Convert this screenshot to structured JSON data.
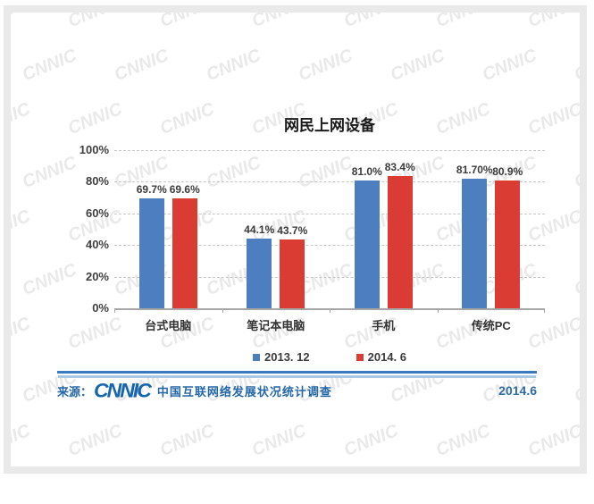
{
  "page": {
    "watermark_text": "CNNIC",
    "source_label": "来源：",
    "source_logo": "CNNIC",
    "source_text": "中国互联网络发展状况统计调查",
    "footer_date": "2014.6"
  },
  "colors": {
    "series_2013_blue": "#4d7ebf",
    "series_2014_red": "#da3b32",
    "divider_blue": "#3a79be",
    "footer_text_blue": "#2568a8",
    "frame_gray": "#e9e9e9",
    "gridline_gray": "#c6c6c6",
    "axis_gray": "#a6a6a6"
  },
  "chart_data": {
    "type": "bar",
    "title": "网民上网设备",
    "categories": [
      "台式电脑",
      "笔记本电脑",
      "手机",
      "传统PC"
    ],
    "series": [
      {
        "name": "2013. 12",
        "color": "#4d7ebf",
        "values": [
          69.7,
          44.1,
          81.0,
          81.7
        ],
        "labels": [
          "69.7%",
          "44.1%",
          "81.0%",
          "81.70%"
        ]
      },
      {
        "name": "2014. 6",
        "color": "#da3b32",
        "values": [
          69.6,
          43.7,
          83.4,
          80.9
        ],
        "labels": [
          "69.6%",
          "43.7%",
          "83.4%",
          "80.9%"
        ]
      }
    ],
    "xlabel": "",
    "ylabel": "",
    "y_axis": {
      "min": 0,
      "max": 100,
      "tick_step": 20,
      "ticks": [
        "100%",
        "80%",
        "60%",
        "40%",
        "20%",
        "0%"
      ]
    },
    "grid": "horizontal-dashed",
    "legend_position": "bottom"
  }
}
